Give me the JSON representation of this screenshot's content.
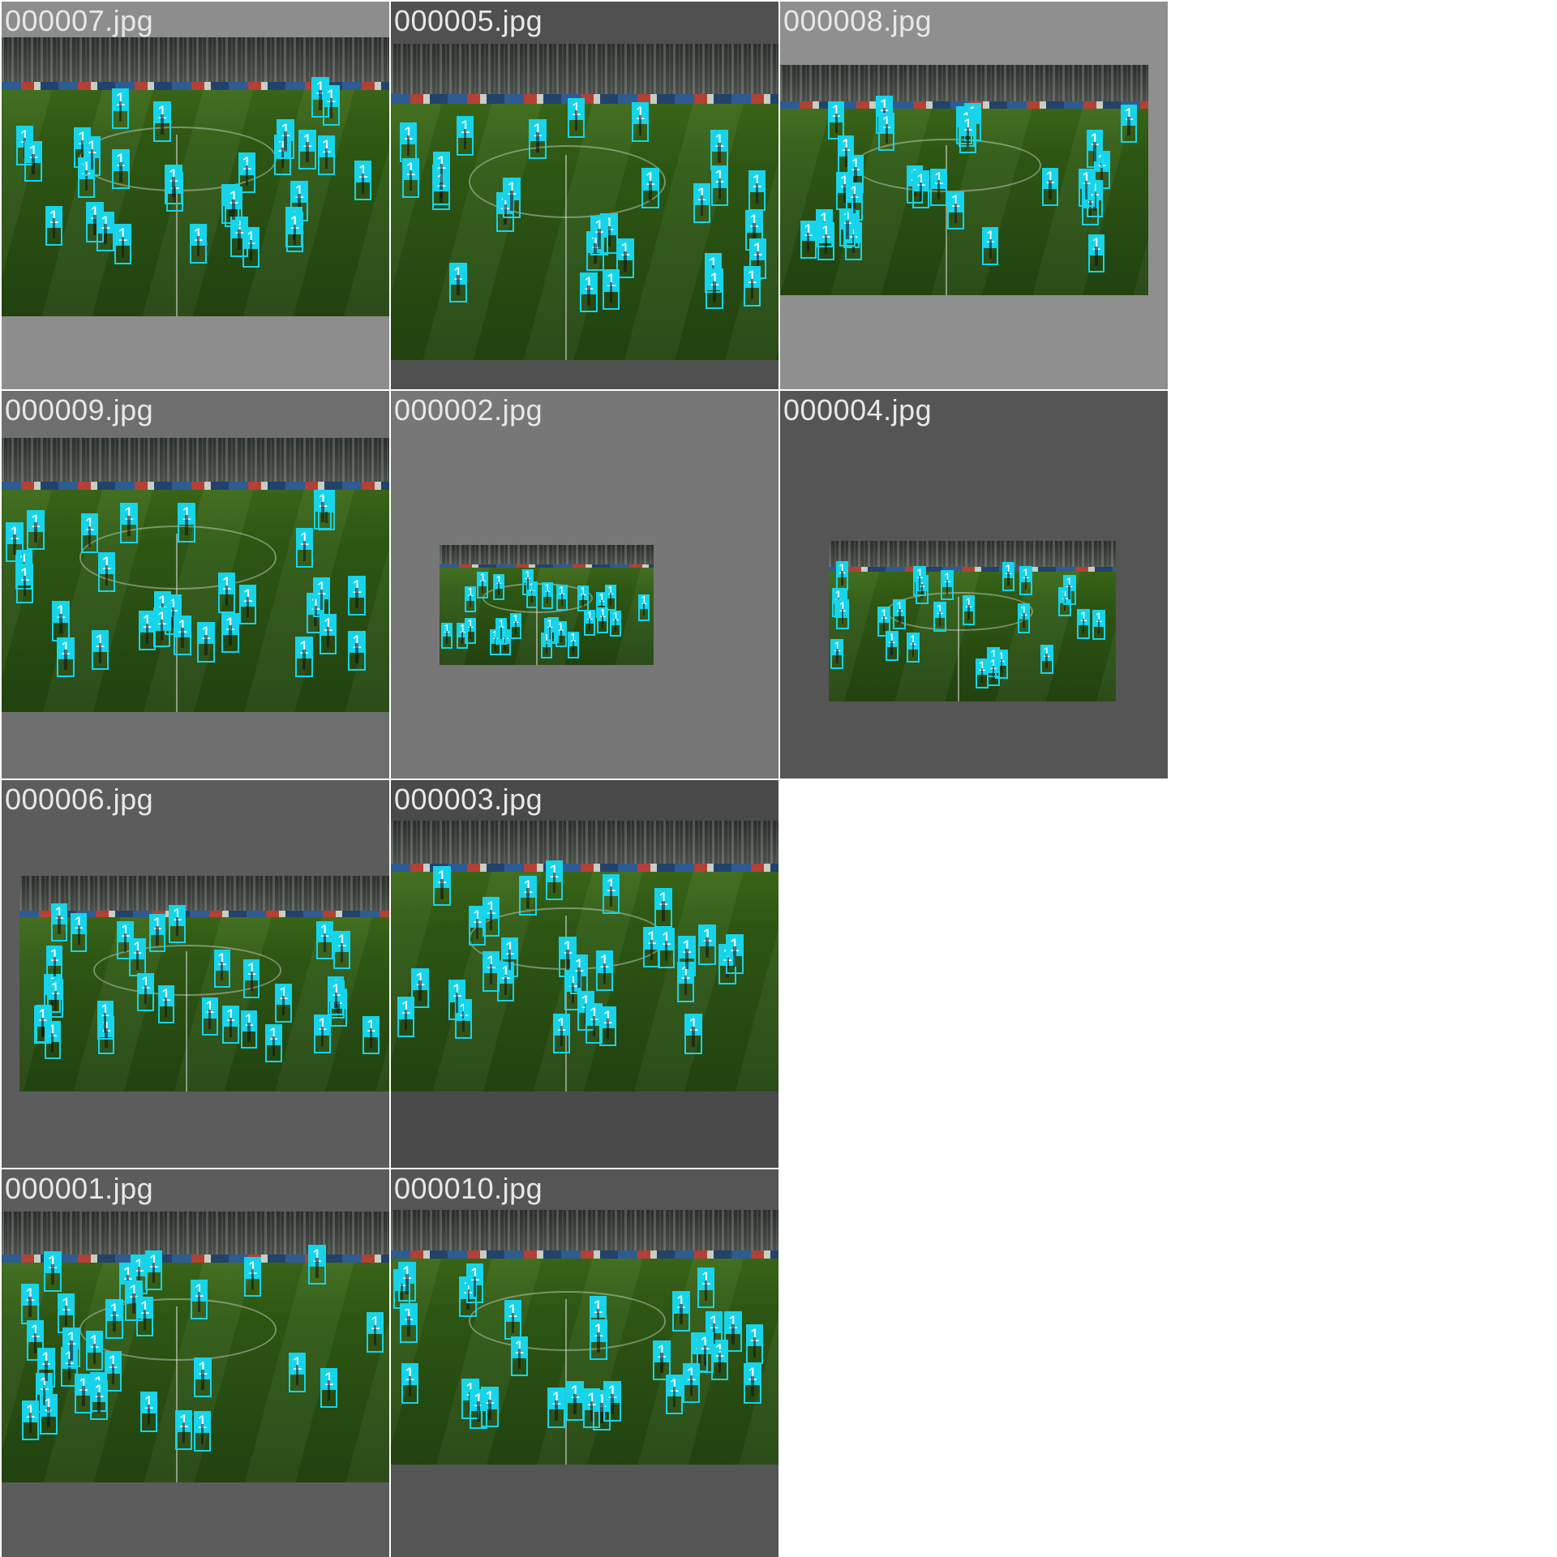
{
  "grid": {
    "tiles": [
      {
        "label": "000007.jpg",
        "bg": "#8d8d8d",
        "field_color": "#3f7a16",
        "det_count": 30
      },
      {
        "label": "000005.jpg",
        "bg": "#505050",
        "field_color": "#2c4a10",
        "det_count": 28
      },
      {
        "label": "000008.jpg",
        "bg": "#8f8f8f",
        "field_color": "#3f7a16",
        "det_count": 30
      },
      {
        "label": "000009.jpg",
        "bg": "#6e6e6e",
        "field_color": "#3a6a14",
        "det_count": 29
      },
      {
        "label": "000002.jpg",
        "bg": "#777777",
        "field_color": "#3a6a14",
        "det_count": 26
      },
      {
        "label": "000004.jpg",
        "bg": "#555555",
        "field_color": "#36641a",
        "det_count": 26
      },
      {
        "label": "000006.jpg",
        "bg": "#5c5c5c",
        "field_color": "#305a14",
        "det_count": 30
      },
      {
        "label": "000003.jpg",
        "bg": "#4a4a4a",
        "field_color": "#2f4a26",
        "det_count": 30
      },
      {
        "label": "000001.jpg",
        "bg": "#5c5c5c",
        "field_color": "#334e22",
        "det_count": 31
      },
      {
        "label": "000010.jpg",
        "bg": "#555555",
        "field_color": "#2e4a24",
        "det_count": 30
      }
    ],
    "detection_class_label": "1",
    "detection_color": "#16d4ea"
  }
}
